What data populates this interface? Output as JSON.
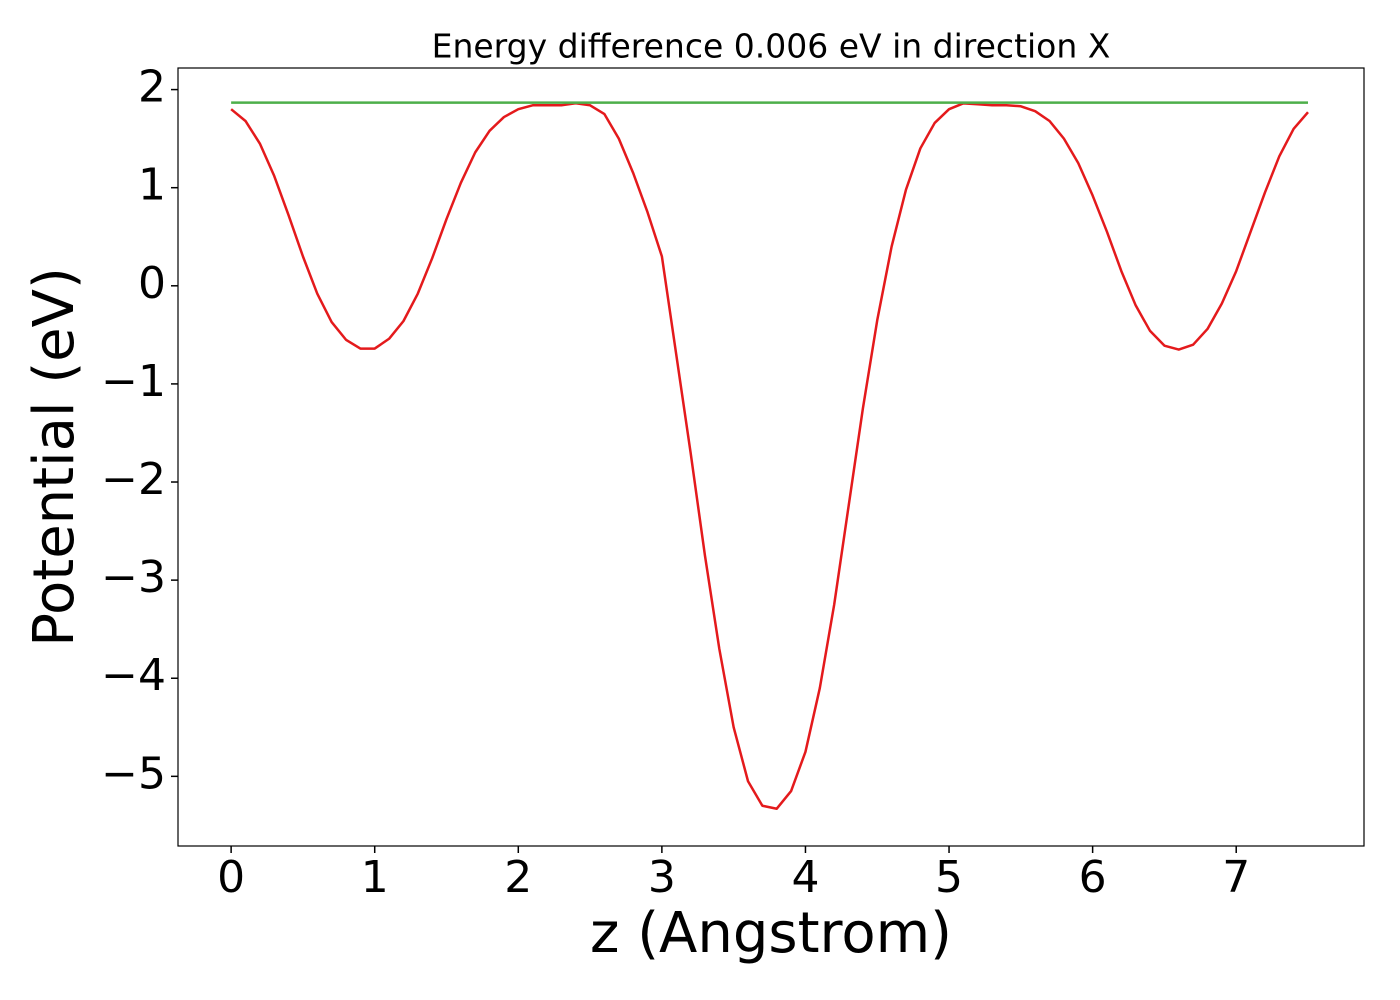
{
  "chart_data": {
    "type": "line",
    "title": "Energy difference 0.006 eV in direction X",
    "xlabel": "z (Angstrom)",
    "ylabel": "Potential (eV)",
    "xlim": [
      -0.37,
      7.89
    ],
    "ylim": [
      -5.71,
      2.22
    ],
    "xticks": [
      0,
      1,
      2,
      3,
      4,
      5,
      6,
      7
    ],
    "yticks": [
      {
        "value": -5,
        "label": "−5"
      },
      {
        "value": -4,
        "label": "−4"
      },
      {
        "value": -3,
        "label": "−3"
      },
      {
        "value": -2,
        "label": "−2"
      },
      {
        "value": -1,
        "label": "−1"
      },
      0,
      1,
      2
    ],
    "series": [
      {
        "color": "#e41a1c",
        "x": [
          0,
          0.1,
          0.2,
          0.3,
          0.4,
          0.5,
          0.6,
          0.7,
          0.8,
          0.9,
          1.0,
          1.1,
          1.2,
          1.3,
          1.4,
          1.5,
          1.6,
          1.7,
          1.8,
          1.9,
          2.0,
          2.1,
          2.2,
          2.3,
          2.4,
          2.5,
          2.6,
          2.7,
          2.8,
          2.9,
          3.0,
          3.1,
          3.2,
          3.3,
          3.4,
          3.5,
          3.6,
          3.7,
          3.8,
          3.9,
          4.0,
          4.1,
          4.2,
          4.3,
          4.4,
          4.5,
          4.6,
          4.7,
          4.8,
          4.9,
          5.0,
          5.1,
          5.2,
          5.3,
          5.4,
          5.5,
          5.6,
          5.7,
          5.8,
          5.9,
          6.0,
          6.1,
          6.2,
          6.3,
          6.4,
          6.5,
          6.6,
          6.7,
          6.8,
          6.9,
          7.0,
          7.1,
          7.2,
          7.3,
          7.4,
          7.5
        ],
        "values": [
          1.8,
          1.68,
          1.45,
          1.12,
          0.72,
          0.3,
          -0.08,
          -0.37,
          -0.55,
          -0.64,
          -0.64,
          -0.54,
          -0.36,
          -0.08,
          0.28,
          0.68,
          1.05,
          1.36,
          1.58,
          1.72,
          1.8,
          1.84,
          1.84,
          1.84,
          1.86,
          1.84,
          1.75,
          1.5,
          1.15,
          0.75,
          0.3,
          -0.7,
          -1.7,
          -2.75,
          -3.7,
          -4.5,
          -5.05,
          -5.3,
          -5.33,
          -5.15,
          -4.75,
          -4.1,
          -3.25,
          -2.25,
          -1.25,
          -0.35,
          0.4,
          0.98,
          1.4,
          1.66,
          1.8,
          1.86,
          1.85,
          1.84,
          1.84,
          1.83,
          1.78,
          1.68,
          1.5,
          1.25,
          0.92,
          0.55,
          0.15,
          -0.2,
          -0.46,
          -0.61,
          -0.65,
          -0.6,
          -0.44,
          -0.18,
          0.15,
          0.55,
          0.95,
          1.32,
          1.6,
          1.77
        ]
      },
      {
        "color": "#4daf4a",
        "x": [
          0,
          7.5
        ],
        "values": [
          1.867,
          1.867
        ]
      }
    ]
  }
}
